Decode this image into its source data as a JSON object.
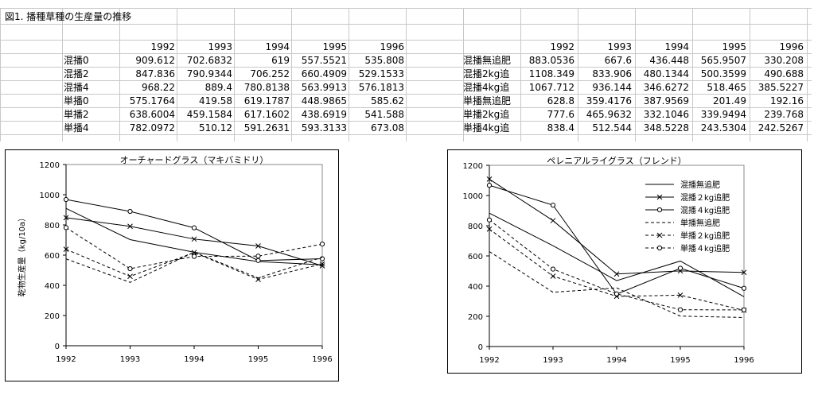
{
  "sheet": {
    "title": "図1. 播種草種の生産量の推移",
    "years": [
      "1992",
      "1993",
      "1994",
      "1995",
      "1996"
    ],
    "left_table": [
      {
        "label": "混播0",
        "values": [
          "909.612",
          "702.6832",
          "619",
          "557.5521",
          "535.808"
        ]
      },
      {
        "label": "混播2",
        "values": [
          "847.836",
          "790.9344",
          "706.252",
          "660.4909",
          "529.1533"
        ]
      },
      {
        "label": "混播4",
        "values": [
          "968.22",
          "889.4",
          "780.8138",
          "563.9913",
          "576.1813"
        ]
      },
      {
        "label": "単播0",
        "values": [
          "575.1764",
          "419.58",
          "619.1787",
          "448.9865",
          "585.62"
        ]
      },
      {
        "label": "単播2",
        "values": [
          "638.6004",
          "459.1584",
          "617.1602",
          "438.6919",
          "541.588"
        ]
      },
      {
        "label": "単播4",
        "values": [
          "782.0972",
          "510.12",
          "591.2631",
          "593.3133",
          "673.08"
        ]
      }
    ],
    "right_table": [
      {
        "label": "混播無追肥",
        "values": [
          "883.0536",
          "667.6",
          "436.448",
          "565.9507",
          "330.208"
        ]
      },
      {
        "label": "混播2kg追",
        "values": [
          "1108.349",
          "833.906",
          "480.1344",
          "500.3599",
          "490.688"
        ]
      },
      {
        "label": "混播4kg追",
        "values": [
          "1067.712",
          "936.144",
          "346.6272",
          "518.465",
          "385.5227"
        ]
      },
      {
        "label": "単播無追肥",
        "values": [
          "628.8",
          "359.4176",
          "387.9569",
          "201.49",
          "192.16"
        ]
      },
      {
        "label": "単播2kg追",
        "values": [
          "777.6",
          "465.9632",
          "332.1046",
          "339.9494",
          "239.768"
        ]
      },
      {
        "label": "単播4kg追",
        "values": [
          "838.4",
          "512.544",
          "348.5228",
          "243.5304",
          "242.5267"
        ]
      }
    ]
  },
  "chart_data": [
    {
      "type": "line",
      "title": "オーチャードグラス（マキバミドリ）",
      "xlabel": "",
      "ylabel": "乾物生産量（kg/10a）",
      "x": [
        1992,
        1993,
        1994,
        1995,
        1996
      ],
      "ylim": [
        0,
        1200
      ],
      "yticks": [
        0,
        200,
        400,
        600,
        800,
        1000,
        1200
      ],
      "legend": "none",
      "series": [
        {
          "name": "混播0",
          "values": [
            909.612,
            702.6832,
            619,
            557.5521,
            535.808
          ],
          "dash": "solid",
          "marker": "none"
        },
        {
          "name": "混播2",
          "values": [
            847.836,
            790.9344,
            706.252,
            660.4909,
            529.1533
          ],
          "dash": "solid",
          "marker": "x"
        },
        {
          "name": "混播4",
          "values": [
            968.22,
            889.4,
            780.8138,
            563.9913,
            576.1813
          ],
          "dash": "solid",
          "marker": "o"
        },
        {
          "name": "単播0",
          "values": [
            575.1764,
            419.58,
            619.1787,
            448.9865,
            585.62
          ],
          "dash": "dashed",
          "marker": "none"
        },
        {
          "name": "単播2",
          "values": [
            638.6004,
            459.1584,
            617.1602,
            438.6919,
            541.588
          ],
          "dash": "dashed",
          "marker": "x"
        },
        {
          "name": "単播4",
          "values": [
            782.0972,
            510.12,
            591.2631,
            593.3133,
            673.08
          ],
          "dash": "dashed",
          "marker": "o"
        }
      ]
    },
    {
      "type": "line",
      "title": "ペレニアルライグラス（フレンド）",
      "xlabel": "",
      "ylabel": "",
      "x": [
        1992,
        1993,
        1994,
        1995,
        1996
      ],
      "ylim": [
        0,
        1200
      ],
      "yticks": [
        0,
        200,
        400,
        600,
        800,
        1000,
        1200
      ],
      "legend": "top-right",
      "series": [
        {
          "name": "混播無追肥",
          "values": [
            883.0536,
            667.6,
            436.448,
            565.9507,
            330.208
          ],
          "dash": "solid",
          "marker": "none"
        },
        {
          "name": "混播２kg追肥",
          "values": [
            1108.349,
            833.906,
            480.1344,
            500.3599,
            490.688
          ],
          "dash": "solid",
          "marker": "x"
        },
        {
          "name": "混播４kg追肥",
          "values": [
            1067.712,
            936.144,
            346.6272,
            518.465,
            385.5227
          ],
          "dash": "solid",
          "marker": "o"
        },
        {
          "name": "単播無追肥",
          "values": [
            628.8,
            359.4176,
            387.9569,
            201.49,
            192.16
          ],
          "dash": "dashed",
          "marker": "none"
        },
        {
          "name": "単播２kg追肥",
          "values": [
            777.6,
            465.9632,
            332.1046,
            339.9494,
            239.768
          ],
          "dash": "dashed",
          "marker": "x"
        },
        {
          "name": "単播４kg追肥",
          "values": [
            838.4,
            512.544,
            348.5228,
            243.5304,
            242.5267
          ],
          "dash": "dashed",
          "marker": "o"
        }
      ]
    }
  ]
}
